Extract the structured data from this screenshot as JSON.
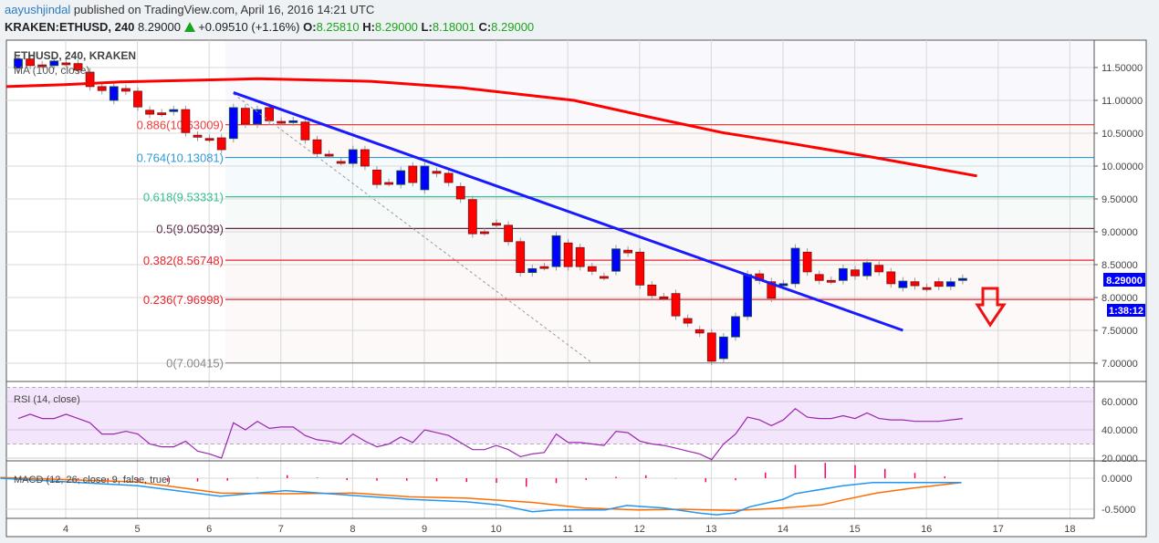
{
  "header": {
    "author": "aayushjindal",
    "published": "published on TradingView.com, April 16, 2016 14:21 UTC",
    "symbol": "KRAKEN:ETHUSD, 240",
    "last": "8.29000",
    "change": "+0.09510 (+1.16%)",
    "o_label": "O:",
    "o": "8.25810",
    "h_label": "H:",
    "h": "8.29000",
    "l_label": "L:",
    "l": "8.18001",
    "c_label": "C:",
    "c": "8.29000"
  },
  "chart": {
    "legend_title": "ETHUSD, 240, KRAKEN",
    "ma_label": "MA (100, close)",
    "rsi_label": "RSI (14, close)",
    "macd_label": "MACD (12, 26, close, 9, false, true)",
    "current_price": "8.29000",
    "countdown": "1:38:12",
    "colors": {
      "up": "#0000ff",
      "down": "#ff0000",
      "ma": "#ff0000",
      "trendline": "#1a1aff",
      "rsi": "#9c27b0",
      "macd": "#2196f3",
      "signal": "#ff6d00",
      "histogram": "#ff0066",
      "price_tag": "#0000ff",
      "arrow": "#ee1111"
    }
  },
  "chart_data": {
    "type": "candlestick",
    "price_axis": {
      "ylim": [
        6.85,
        11.85
      ],
      "ticks": [
        "11.50000",
        "11.00000",
        "10.50000",
        "10.00000",
        "9.50000",
        "9.00000",
        "8.50000",
        "8.00000",
        "7.50000",
        "7.00000"
      ]
    },
    "time_axis": {
      "ticks": [
        "4",
        "5",
        "6",
        "7",
        "8",
        "9",
        "10",
        "11",
        "12",
        "13",
        "14",
        "15",
        "16",
        "17",
        "18"
      ]
    },
    "candles_oc": [
      [
        11.49,
        11.63
      ],
      [
        11.63,
        11.53
      ],
      [
        11.54,
        11.54
      ],
      [
        11.53,
        11.6
      ],
      [
        11.57,
        11.57
      ],
      [
        11.56,
        11.46
      ],
      [
        11.43,
        11.21
      ],
      [
        11.21,
        11.15
      ],
      [
        11.0,
        11.21
      ],
      [
        11.18,
        11.14
      ],
      [
        11.14,
        10.9
      ],
      [
        10.85,
        10.79
      ],
      [
        10.81,
        10.81
      ],
      [
        10.83,
        10.86
      ],
      [
        10.86,
        10.51
      ],
      [
        10.47,
        10.44
      ],
      [
        10.42,
        10.42
      ],
      [
        10.43,
        10.25
      ],
      [
        10.42,
        10.89
      ],
      [
        10.88,
        10.64
      ],
      [
        10.64,
        10.86
      ],
      [
        10.89,
        10.69
      ],
      [
        10.68,
        10.68
      ],
      [
        10.67,
        10.69
      ],
      [
        10.67,
        10.4
      ],
      [
        10.4,
        10.19
      ],
      [
        10.18,
        10.18
      ],
      [
        10.07,
        10.07
      ],
      [
        10.04,
        10.25
      ],
      [
        10.25,
        10.0
      ],
      [
        9.94,
        9.72
      ],
      [
        9.75,
        9.75
      ],
      [
        9.72,
        9.93
      ],
      [
        10.0,
        9.75
      ],
      [
        9.64,
        10.0
      ],
      [
        9.92,
        9.89
      ],
      [
        9.89,
        9.75
      ],
      [
        9.69,
        9.5
      ],
      [
        9.49,
        8.97
      ],
      [
        9.0,
        9.0
      ],
      [
        9.13,
        9.1
      ],
      [
        9.1,
        8.85
      ],
      [
        8.85,
        8.38
      ],
      [
        8.38,
        8.44
      ],
      [
        8.47,
        8.47
      ],
      [
        8.47,
        8.94
      ],
      [
        8.83,
        8.47
      ],
      [
        8.76,
        8.47
      ],
      [
        8.47,
        8.4
      ],
      [
        8.32,
        8.32
      ],
      [
        8.4,
        8.74
      ],
      [
        8.72,
        8.68
      ],
      [
        8.69,
        8.19
      ],
      [
        8.19,
        8.03
      ],
      [
        8.01,
        8.01
      ],
      [
        8.06,
        7.72
      ],
      [
        7.68,
        7.61
      ],
      [
        7.51,
        7.46
      ],
      [
        7.46,
        7.03
      ],
      [
        7.07,
        7.4
      ],
      [
        7.4,
        7.71
      ],
      [
        7.71,
        8.35
      ],
      [
        8.36,
        8.26
      ],
      [
        8.24,
        7.99
      ],
      [
        8.18,
        8.21
      ],
      [
        8.21,
        8.75
      ],
      [
        8.69,
        8.39
      ],
      [
        8.35,
        8.26
      ],
      [
        8.26,
        8.26
      ],
      [
        8.26,
        8.44
      ],
      [
        8.42,
        8.33
      ],
      [
        8.33,
        8.53
      ],
      [
        8.49,
        8.39
      ],
      [
        8.39,
        8.21
      ],
      [
        8.15,
        8.25
      ],
      [
        8.24,
        8.18
      ],
      [
        8.15,
        8.15
      ],
      [
        8.24,
        8.17
      ],
      [
        8.17,
        8.24
      ],
      [
        8.26,
        8.29
      ]
    ],
    "ma100": [
      [
        -1,
        11.21
      ],
      [
        3.9,
        11.24
      ],
      [
        8.5,
        11.28
      ],
      [
        17.8,
        11.32
      ],
      [
        20,
        11.33
      ],
      [
        29.5,
        11.29
      ],
      [
        37.2,
        11.19
      ],
      [
        46.5,
        11.0
      ],
      [
        52.7,
        10.75
      ],
      [
        58.9,
        10.51
      ],
      [
        65.1,
        10.33
      ],
      [
        71.3,
        10.14
      ],
      [
        80.2,
        9.85
      ]
    ],
    "fib_levels": [
      {
        "label": "0.886(10.63009)",
        "value": 10.63009,
        "color": "#f23c3c"
      },
      {
        "label": "0.764(10.13081)",
        "value": 10.13081,
        "color": "#2e9bd6"
      },
      {
        "label": "0.618(9.53331)",
        "value": 9.53331,
        "color": "#35c08c"
      },
      {
        "label": "0.5(9.05039)",
        "value": 9.05039,
        "color": "#5b2847"
      },
      {
        "label": "0.382(8.56748)",
        "value": 8.56748,
        "color": "#e8262c"
      },
      {
        "label": "0.236(7.96998)",
        "value": 7.96998,
        "color": "#e8262c"
      },
      {
        "label": "0(7.00415)",
        "value": 7.00415,
        "color": "#888888"
      }
    ],
    "trendline": [
      [
        18,
        11.12
      ],
      [
        74,
        7.5
      ]
    ],
    "fib_diagonal": [
      [
        18,
        11.1
      ],
      [
        48,
        7.00415
      ]
    ],
    "rsi": {
      "ylim": [
        18,
        73
      ],
      "ticks": [
        "60.0000",
        "40.0000",
        "20.0000"
      ],
      "band": [
        30,
        70
      ],
      "values": [
        48,
        51,
        48,
        48,
        51,
        48,
        45,
        37,
        37,
        39,
        37,
        30,
        28,
        28,
        32,
        25,
        23,
        20,
        45,
        40,
        46,
        41,
        42,
        42,
        36,
        33,
        32,
        30,
        37,
        32,
        28,
        30,
        35,
        31,
        40,
        38,
        36,
        31,
        26,
        26,
        29,
        26,
        21,
        23,
        24,
        37,
        31,
        31,
        30,
        29,
        39,
        38,
        32,
        30,
        29,
        27,
        25,
        23,
        19,
        30,
        37,
        49,
        47,
        43,
        47,
        55,
        49,
        48,
        48,
        50,
        48,
        52,
        48,
        47,
        47,
        46,
        46,
        46,
        47,
        48
      ]
    },
    "macd": {
      "ylim": [
        -0.62,
        0.25
      ],
      "ticks": [
        "0.0000",
        "-0.5000"
      ],
      "macd": [
        [
          -1.5,
          0
        ],
        [
          10,
          -0.12
        ],
        [
          16.9,
          -0.29
        ],
        [
          22.4,
          -0.2
        ],
        [
          28.1,
          -0.28
        ],
        [
          32.7,
          -0.34
        ],
        [
          37.4,
          -0.38
        ],
        [
          40.2,
          -0.43
        ],
        [
          43,
          -0.54
        ],
        [
          44.9,
          -0.51
        ],
        [
          49.1,
          -0.51
        ],
        [
          50.9,
          -0.44
        ],
        [
          54,
          -0.48
        ],
        [
          56.9,
          -0.56
        ],
        [
          58.4,
          -0.59
        ],
        [
          59.9,
          -0.56
        ],
        [
          61.2,
          -0.46
        ],
        [
          64,
          -0.34
        ],
        [
          65,
          -0.25
        ],
        [
          69,
          -0.12
        ],
        [
          71.5,
          -0.07
        ],
        [
          75.9,
          -0.07
        ],
        [
          78.9,
          -0.07
        ]
      ],
      "signal": [
        [
          -1.5,
          0.01
        ],
        [
          10,
          -0.06
        ],
        [
          16.9,
          -0.24
        ],
        [
          22.4,
          -0.25
        ],
        [
          28.1,
          -0.24
        ],
        [
          32.7,
          -0.3
        ],
        [
          37.4,
          -0.32
        ],
        [
          43,
          -0.39
        ],
        [
          47.3,
          -0.48
        ],
        [
          51.9,
          -0.51
        ],
        [
          55.7,
          -0.5
        ],
        [
          59.9,
          -0.52
        ],
        [
          64,
          -0.48
        ],
        [
          67.2,
          -0.43
        ],
        [
          69,
          -0.35
        ],
        [
          71.8,
          -0.24
        ],
        [
          74.8,
          -0.16
        ],
        [
          78.9,
          -0.07
        ]
      ]
    }
  }
}
